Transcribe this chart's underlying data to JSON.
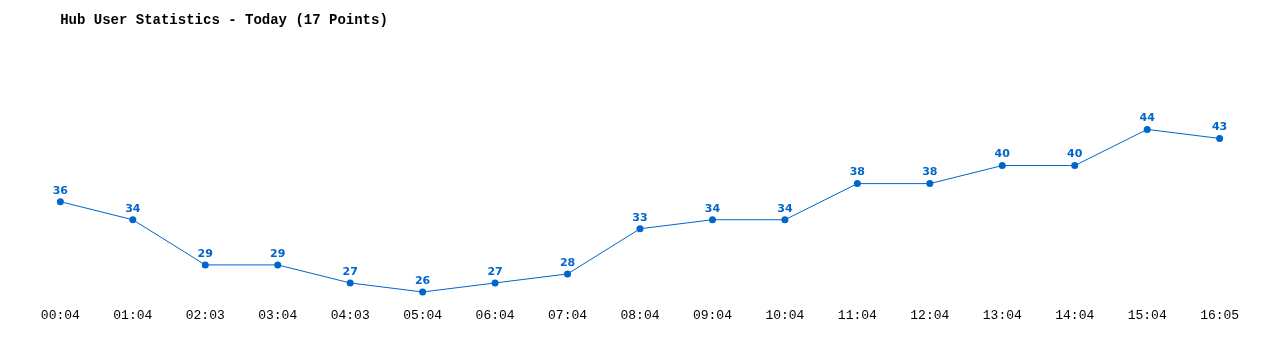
{
  "chart_data": {
    "type": "line",
    "title": "Hub User Statistics - Today (17 Points)",
    "categories": [
      "00:04",
      "01:04",
      "02:03",
      "03:04",
      "04:03",
      "05:04",
      "06:04",
      "07:04",
      "08:04",
      "09:04",
      "10:04",
      "11:04",
      "12:04",
      "13:04",
      "14:04",
      "15:04",
      "16:05"
    ],
    "series": [
      {
        "color": "#0066cc",
        "values": [
          36,
          34,
          29,
          29,
          27,
          26,
          27,
          28,
          33,
          34,
          34,
          38,
          38,
          40,
          40,
          44,
          43
        ]
      }
    ],
    "data_labels": true,
    "tick_labels": "x",
    "grid": false,
    "legend": false,
    "marker": "circle",
    "line_style": "solid"
  }
}
